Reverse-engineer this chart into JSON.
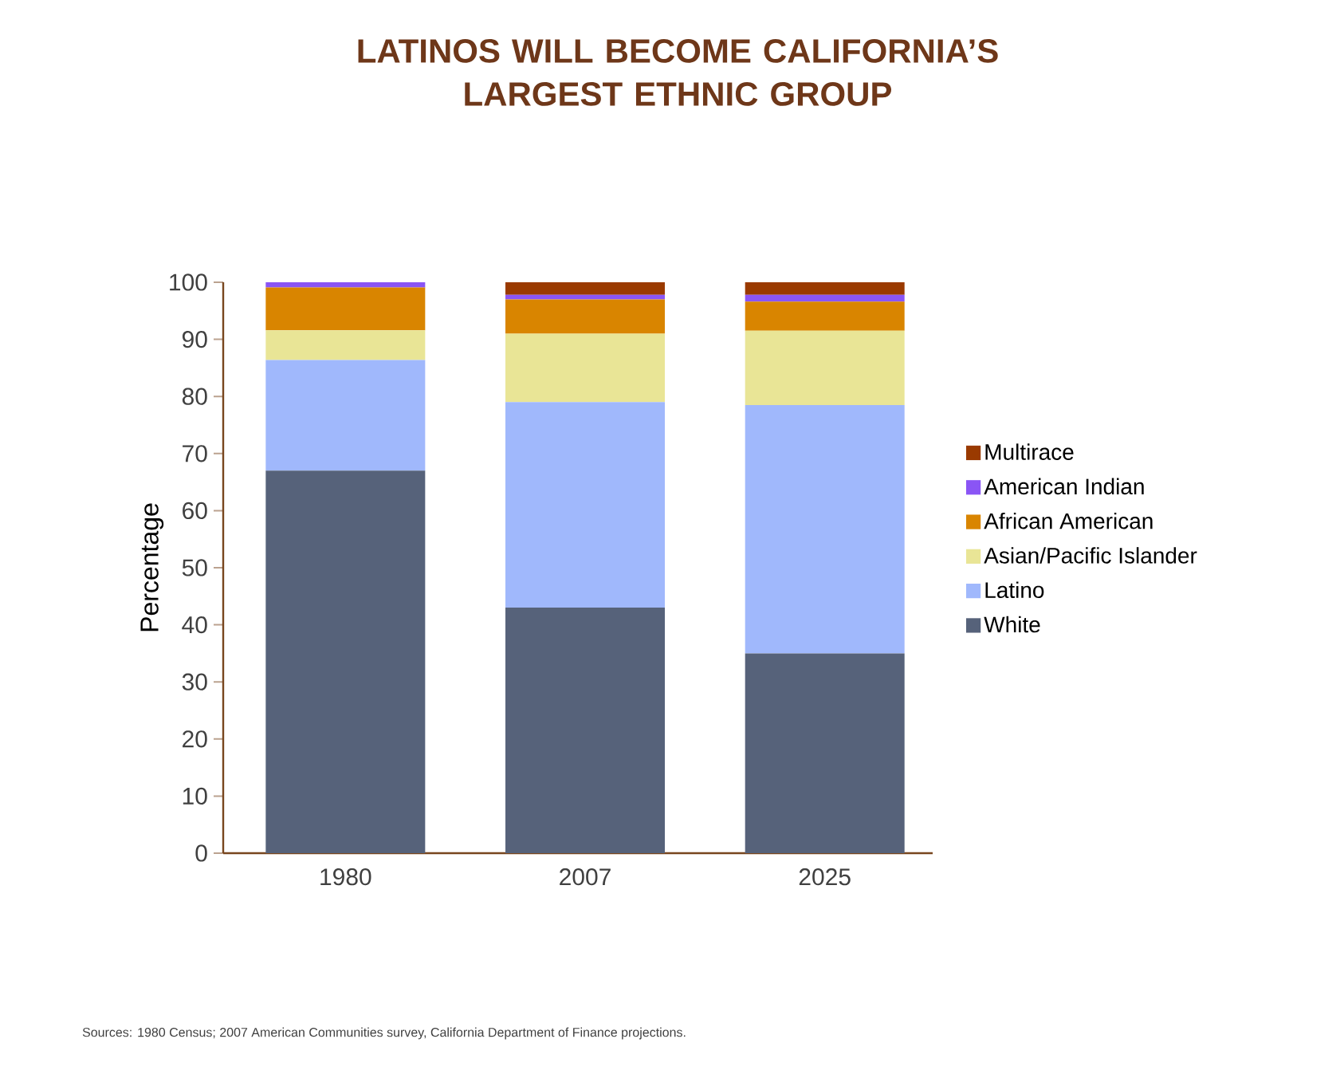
{
  "chart_data": {
    "type": "bar",
    "stacked": true,
    "title": "LATINOS WILL BECOME CALIFORNIA’S LARGEST ETHNIC GROUP",
    "ylabel": "Percentage",
    "categories": [
      "1980",
      "2007",
      "2025"
    ],
    "series": [
      {
        "name": "White",
        "color": "#56627a",
        "values": [
          67,
          43,
          35
        ]
      },
      {
        "name": "Latino",
        "color": "#a0b8fc",
        "values": [
          19.4,
          36,
          43.5
        ]
      },
      {
        "name": "Asian/Pacific Islander",
        "color": "#e9e596",
        "values": [
          5.2,
          12,
          13
        ]
      },
      {
        "name": "African American",
        "color": "#d98500",
        "values": [
          7.5,
          6,
          5.1
        ]
      },
      {
        "name": "American Indian",
        "color": "#8a55f5",
        "values": [
          0.9,
          0.8,
          1.2
        ]
      },
      {
        "name": "Multirace",
        "color": "#9a3a00",
        "values": [
          0,
          2.2,
          2.2
        ]
      }
    ],
    "ylim": [
      0,
      100
    ],
    "yticks": [
      0,
      10,
      20,
      30,
      40,
      50,
      60,
      70,
      80,
      90,
      100
    ],
    "legend": "right",
    "annotations": [
      "Sources: 1980 Census; 2007 American Communities survey, California Department of Finance projections."
    ]
  }
}
